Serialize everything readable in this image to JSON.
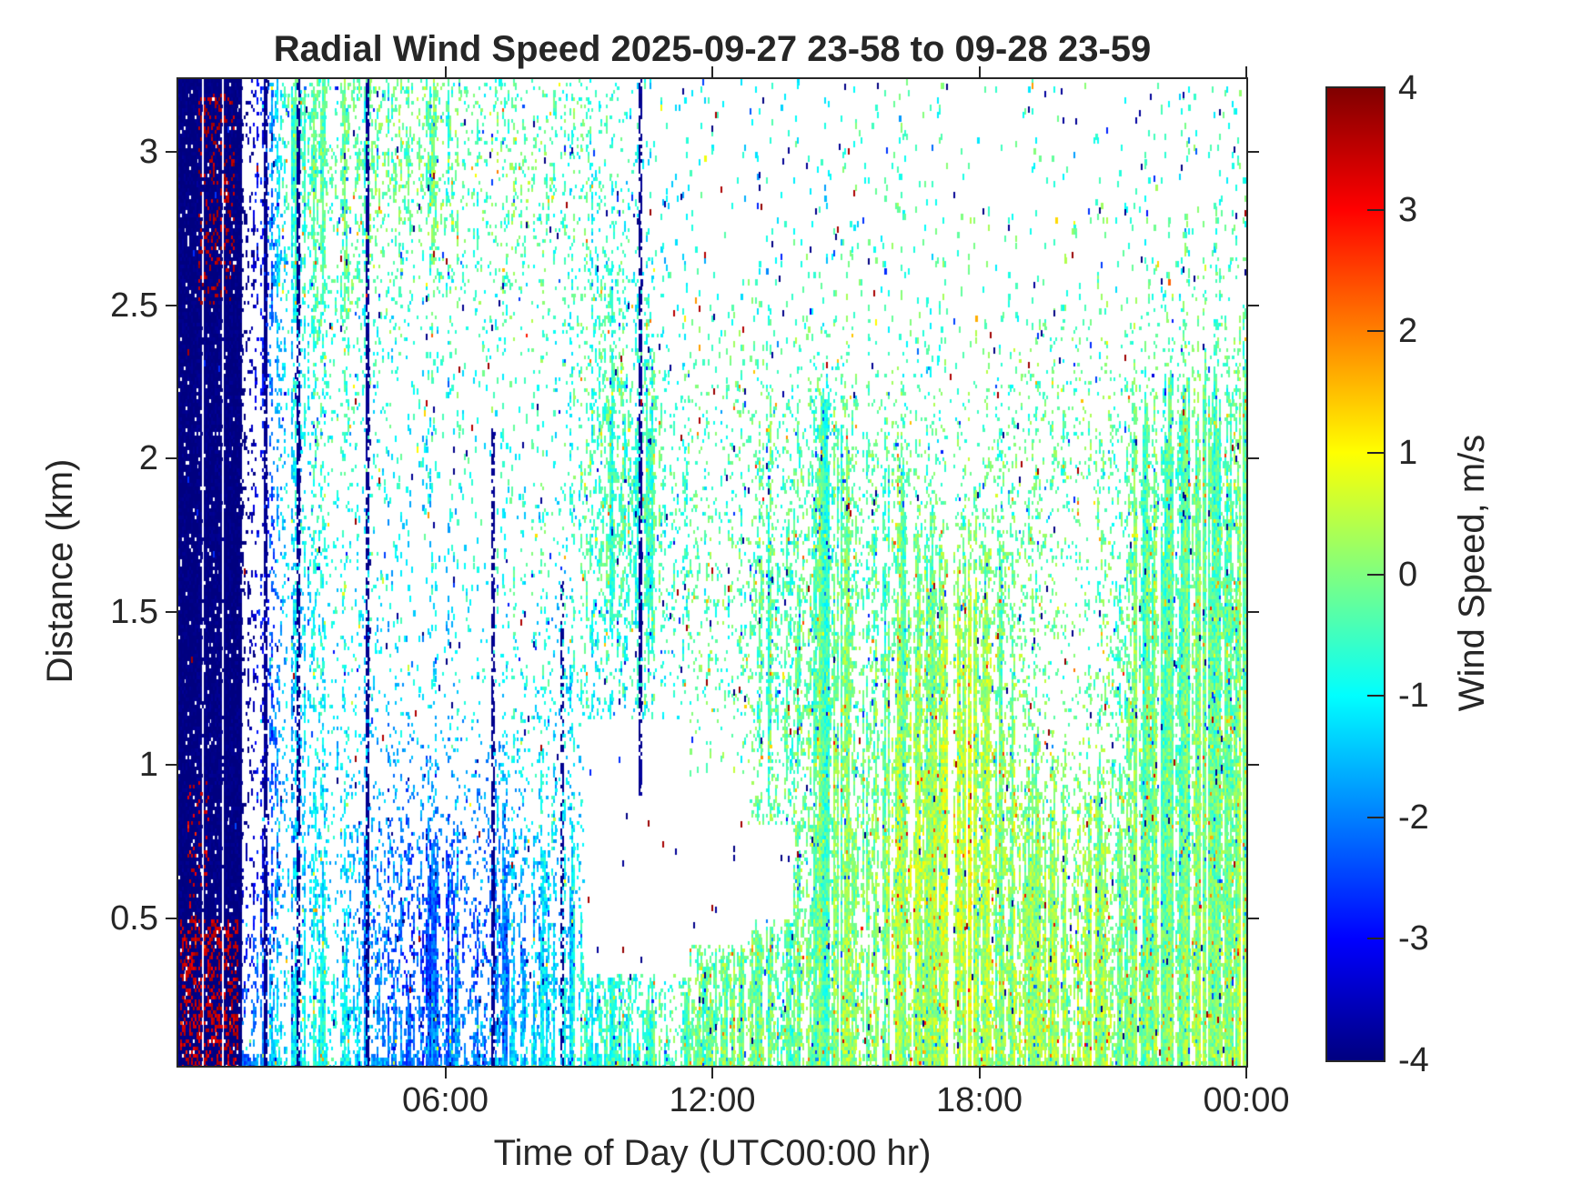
{
  "appearance": {
    "background": "#ffffff",
    "text_color": "#262626",
    "spine_color": "#262626"
  },
  "chart_data": {
    "type": "heatmap",
    "title": "Radial Wind Speed 2025-09-27 23-58 to 09-28 23-59",
    "xlabel": "Time of Day (UTC00:00 hr)",
    "ylabel": "Distance (km)",
    "x_axis": {
      "range_hours": [
        0,
        24
      ],
      "ticks": [
        {
          "hour": 6,
          "label": "06:00"
        },
        {
          "hour": 12,
          "label": "12:00"
        },
        {
          "hour": 18,
          "label": "18:00"
        },
        {
          "hour": 24,
          "label": "00:00"
        }
      ]
    },
    "y_axis": {
      "range_km": [
        0.02,
        3.237
      ],
      "ticks": [
        {
          "km": 0.5,
          "label": "0.5"
        },
        {
          "km": 1,
          "label": "1"
        },
        {
          "km": 1.5,
          "label": "1.5"
        },
        {
          "km": 2,
          "label": "2"
        },
        {
          "km": 2.5,
          "label": "2.5"
        },
        {
          "km": 3,
          "label": "3"
        }
      ]
    },
    "colorbar": {
      "label": "Wind Speed, m/s",
      "min": -4,
      "max": 4,
      "tick_values": [
        4,
        3,
        2,
        1,
        0,
        -1,
        -2,
        -3,
        -4
      ],
      "stops": [
        {
          "p": 0.0,
          "rgb": [
            0,
            0,
            128
          ]
        },
        {
          "p": 0.125,
          "rgb": [
            0,
            0,
            255
          ]
        },
        {
          "p": 0.375,
          "rgb": [
            0,
            255,
            255
          ]
        },
        {
          "p": 0.625,
          "rgb": [
            255,
            255,
            0
          ]
        },
        {
          "p": 0.875,
          "rgb": [
            255,
            0,
            0
          ]
        },
        {
          "p": 1.0,
          "rgb": [
            128,
            0,
            0
          ]
        }
      ]
    },
    "grid": {
      "note": "coarse field estimate: 24 one-hour columns (00-24 UTC) x 13 quarter-km rows, rows listed top(3.0-3.25km) to bottom(0-0.25km); values = mean radial wind speed m/s; coverage = fraction of bin with valid data",
      "time_bin_hours": 1,
      "distance_bin_km": 0.25,
      "values": [
        [
          -4,
          -4,
          -0.4,
          -0.3,
          -0.2,
          -0.2,
          -0.3,
          -0.3,
          -0.4,
          -0.6,
          -0.8,
          -1.0,
          -1.0,
          -1.0,
          -1.0,
          -0.5,
          -0.5,
          -0.5,
          -0.5,
          -0.5,
          -0.5,
          -0.5,
          -0.5,
          -0.5
        ],
        [
          -4,
          -4,
          -0.5,
          -0.2,
          -0.2,
          -0.2,
          -0.3,
          -0.2,
          -0.5,
          -0.7,
          -0.8,
          -1.0,
          -1.0,
          -1.0,
          -1.0,
          -0.5,
          -0.5,
          -0.5,
          -0.5,
          -0.5,
          -0.5,
          -0.5,
          -0.5,
          -0.5
        ],
        [
          -4,
          -4,
          -0.8,
          -0.3,
          -0.3,
          -0.4,
          -0.3,
          -0.2,
          -0.5,
          -0.6,
          -0.7,
          -0.9,
          -0.8,
          -0.7,
          -0.6,
          -0.5,
          -0.5,
          -0.5,
          -0.4,
          -0.4,
          -0.4,
          -0.4,
          -0.4,
          -0.4
        ],
        [
          -4,
          -4,
          -1.0,
          -0.5,
          -0.6,
          -0.8,
          -0.5,
          -0.5,
          -0.6,
          -0.5,
          -0.5,
          -0.6,
          -0.5,
          -0.5,
          -0.5,
          -0.4,
          -0.4,
          -0.4,
          -0.4,
          -0.3,
          -0.3,
          -0.3,
          -0.3,
          -0.3
        ],
        [
          -4,
          -4,
          -1.0,
          -0.6,
          -0.8,
          -1.0,
          -0.6,
          -0.6,
          -0.6,
          -0.5,
          -0.45,
          -0.5,
          -0.45,
          -0.4,
          -0.4,
          -0.35,
          -0.3,
          -0.35,
          -0.3,
          -0.3,
          -0.3,
          -0.3,
          -0.3,
          -0.3
        ],
        [
          -4,
          -4,
          -1.1,
          -0.7,
          -0.9,
          -1.1,
          -0.7,
          -0.6,
          -0.7,
          -0.5,
          -0.4,
          -0.5,
          -0.4,
          -0.4,
          -0.35,
          -0.3,
          -0.25,
          -0.3,
          -0.25,
          -0.3,
          -0.3,
          -0.3,
          -0.3,
          -0.25
        ],
        [
          -4,
          -4,
          -1.2,
          -0.8,
          -1.0,
          -1.2,
          -0.8,
          -0.7,
          -0.8,
          -0.6,
          -0.45,
          -0.5,
          -0.4,
          -0.4,
          -0.3,
          -0.25,
          -0.2,
          0.1,
          -0.1,
          -0.3,
          -0.3,
          -0.25,
          -0.25,
          -0.2
        ],
        [
          -4,
          -4,
          -1.3,
          -0.9,
          -1.2,
          -1.4,
          -1.0,
          -0.8,
          -1.0,
          -0.8,
          -0.6,
          -0.5,
          -0.4,
          -0.4,
          -0.3,
          -0.2,
          -0.1,
          0.3,
          0.0,
          -0.3,
          -0.3,
          -0.2,
          -0.2,
          -0.15
        ],
        [
          -4,
          -4,
          -1.4,
          -1.0,
          -1.4,
          -1.6,
          -1.2,
          -1.0,
          -1.1,
          -0.9,
          -0.7,
          -0.5,
          -0.4,
          -0.4,
          -0.3,
          -0.1,
          0.1,
          0.4,
          0.1,
          -0.2,
          -0.2,
          -0.15,
          -0.2,
          -0.1
        ],
        [
          -4,
          -4,
          -1.5,
          -1.2,
          -1.8,
          -2.0,
          -1.6,
          -1.4,
          -1.2,
          -1.0,
          -0.8,
          -0.6,
          -0.3,
          -0.3,
          -0.2,
          0.0,
          0.3,
          0.5,
          0.2,
          0.0,
          0.0,
          -0.1,
          -0.15,
          -0.05
        ],
        [
          -4,
          -3.6,
          -1.5,
          -1.2,
          -2.0,
          -2.4,
          -2.0,
          -1.6,
          -1.3,
          -1.0,
          -0.6,
          -0.4,
          -0.2,
          -0.3,
          -0.2,
          0.1,
          0.4,
          0.5,
          0.2,
          0.1,
          0.1,
          -0.1,
          -0.1,
          0.0
        ],
        [
          -3.2,
          -2.8,
          -1.3,
          -1.0,
          -2.2,
          -2.6,
          -2.2,
          -1.8,
          -1.4,
          -0.9,
          -0.5,
          -0.35,
          -0.25,
          -0.3,
          -0.2,
          0.1,
          0.3,
          0.4,
          0.2,
          0.2,
          0.15,
          -0.1,
          0.0,
          0.1
        ],
        [
          -2.6,
          -2.2,
          -1.0,
          -0.8,
          -1.8,
          -2.2,
          -1.8,
          -1.5,
          -1.2,
          -0.7,
          -0.4,
          -0.3,
          -0.2,
          -0.25,
          -0.15,
          0.1,
          0.2,
          0.3,
          0.2,
          0.2,
          0.2,
          0.0,
          0.1,
          0.15
        ]
      ],
      "coverage": [
        [
          0.97,
          0.18,
          0.6,
          0.5,
          0.38,
          0.45,
          0.38,
          0.32,
          0.3,
          0.25,
          0.1,
          0.05,
          0.04,
          0.05,
          0.06,
          0.08,
          0.06,
          0.05,
          0.04,
          0.04,
          0.04,
          0.05,
          0.06,
          0.08
        ],
        [
          0.97,
          0.18,
          0.58,
          0.52,
          0.4,
          0.45,
          0.38,
          0.32,
          0.3,
          0.3,
          0.1,
          0.05,
          0.04,
          0.05,
          0.06,
          0.08,
          0.06,
          0.05,
          0.04,
          0.04,
          0.04,
          0.05,
          0.06,
          0.08
        ],
        [
          0.97,
          0.18,
          0.52,
          0.45,
          0.28,
          0.22,
          0.28,
          0.3,
          0.2,
          0.35,
          0.15,
          0.06,
          0.05,
          0.06,
          0.08,
          0.1,
          0.08,
          0.06,
          0.05,
          0.05,
          0.05,
          0.06,
          0.1,
          0.15
        ],
        [
          0.97,
          0.18,
          0.45,
          0.32,
          0.18,
          0.13,
          0.13,
          0.14,
          0.15,
          0.4,
          0.3,
          0.1,
          0.08,
          0.1,
          0.15,
          0.15,
          0.1,
          0.08,
          0.1,
          0.2,
          0.15,
          0.15,
          0.3,
          0.35
        ],
        [
          0.97,
          0.18,
          0.42,
          0.28,
          0.14,
          0.11,
          0.11,
          0.11,
          0.12,
          0.45,
          0.5,
          0.2,
          0.15,
          0.3,
          0.5,
          0.45,
          0.3,
          0.15,
          0.25,
          0.3,
          0.25,
          0.45,
          0.55,
          0.6
        ],
        [
          0.97,
          0.18,
          0.42,
          0.28,
          0.13,
          0.1,
          0.11,
          0.12,
          0.15,
          0.5,
          0.55,
          0.25,
          0.2,
          0.45,
          0.65,
          0.6,
          0.45,
          0.25,
          0.35,
          0.3,
          0.25,
          0.6,
          0.7,
          0.7
        ],
        [
          0.97,
          0.18,
          0.42,
          0.28,
          0.13,
          0.1,
          0.12,
          0.14,
          0.2,
          0.5,
          0.55,
          0.3,
          0.25,
          0.55,
          0.7,
          0.7,
          0.6,
          0.5,
          0.5,
          0.25,
          0.2,
          0.7,
          0.75,
          0.75
        ],
        [
          0.97,
          0.18,
          0.42,
          0.28,
          0.14,
          0.11,
          0.14,
          0.17,
          0.25,
          0.4,
          0.35,
          0.2,
          0.2,
          0.6,
          0.7,
          0.75,
          0.7,
          0.65,
          0.6,
          0.2,
          0.2,
          0.75,
          0.8,
          0.8
        ],
        [
          0.97,
          0.18,
          0.42,
          0.28,
          0.18,
          0.14,
          0.17,
          0.21,
          0.3,
          0.35,
          0.25,
          0.15,
          0.15,
          0.6,
          0.7,
          0.75,
          0.7,
          0.7,
          0.65,
          0.3,
          0.25,
          0.8,
          0.8,
          0.8
        ],
        [
          0.97,
          0.2,
          0.42,
          0.33,
          0.24,
          0.28,
          0.28,
          0.33,
          0.3,
          0.2,
          0.08,
          0.05,
          0.1,
          0.4,
          0.7,
          0.8,
          0.75,
          0.8,
          0.7,
          0.5,
          0.45,
          0.8,
          0.85,
          0.85
        ],
        [
          0.97,
          0.22,
          0.45,
          0.38,
          0.33,
          0.43,
          0.48,
          0.52,
          0.48,
          0.35,
          0.06,
          0.04,
          0.3,
          0.6,
          0.75,
          0.85,
          0.8,
          0.85,
          0.8,
          0.7,
          0.65,
          0.85,
          0.85,
          0.85
        ],
        [
          0.97,
          0.3,
          0.5,
          0.48,
          0.43,
          0.52,
          0.58,
          0.62,
          0.58,
          0.5,
          0.4,
          0.45,
          0.6,
          0.7,
          0.8,
          0.85,
          0.8,
          0.85,
          0.8,
          0.75,
          0.7,
          0.85,
          0.85,
          0.85
        ],
        [
          0.97,
          0.3,
          0.58,
          0.53,
          0.48,
          0.58,
          0.62,
          0.68,
          0.63,
          0.6,
          0.55,
          0.6,
          0.7,
          0.75,
          0.85,
          0.9,
          0.85,
          0.9,
          0.85,
          0.8,
          0.8,
          0.9,
          0.9,
          0.9
        ]
      ]
    },
    "features": {
      "saturated_band": {
        "t0": 0.02,
        "t1": 1.45,
        "d0": 0.0,
        "d1": 3.24,
        "value": -4,
        "coverage": 0.97
      },
      "red_zones": [
        {
          "t0": 0.45,
          "t1": 1.25,
          "d0": 2.5,
          "d1": 3.2,
          "value": 3.6,
          "p": 0.22
        },
        {
          "t0": 0.05,
          "t1": 1.35,
          "d0": 0.0,
          "d1": 0.5,
          "value": 3.4,
          "p": 0.38
        },
        {
          "t0": 0.2,
          "t1": 0.7,
          "d0": 0.5,
          "d1": 0.95,
          "value": 3.3,
          "p": 0.15
        }
      ],
      "voids": [
        {
          "t0": 9.1,
          "t1": 11.5,
          "d0": 0.32,
          "d1": 1.15
        },
        {
          "t0": 11.5,
          "t1": 12.8,
          "d0": 0.42,
          "d1": 0.97
        },
        {
          "t0": 12.8,
          "t1": 13.8,
          "d0": 0.5,
          "d1": 0.8
        }
      ],
      "navy_vlines": [
        {
          "t": 1.93,
          "d0": 0.0,
          "d1": 3.24,
          "p": 0.85
        },
        {
          "t": 2.69,
          "d0": 0.0,
          "d1": 3.24,
          "p": 0.7
        },
        {
          "t": 4.22,
          "d0": 0.0,
          "d1": 3.24,
          "p": 0.75
        },
        {
          "t": 7.05,
          "d0": 0.0,
          "d1": 2.1,
          "p": 0.7
        },
        {
          "t": 8.6,
          "d0": 0.0,
          "d1": 1.6,
          "p": 0.45
        },
        {
          "t": 10.37,
          "d0": 0.9,
          "d1": 3.24,
          "p": 0.75
        }
      ],
      "bottom_edge_boost": {
        "d_max": 0.06,
        "coverage_min": 0.88
      },
      "speckles": {
        "count": 520,
        "palette": [
          {
            "value": -3.9,
            "weight": 0.62
          },
          {
            "value": 3.7,
            "weight": 0.2
          },
          {
            "value": -2.6,
            "weight": 0.18
          }
        ]
      }
    },
    "render": {
      "seed": 123457,
      "block_w": 2,
      "block_h": 4
    }
  }
}
